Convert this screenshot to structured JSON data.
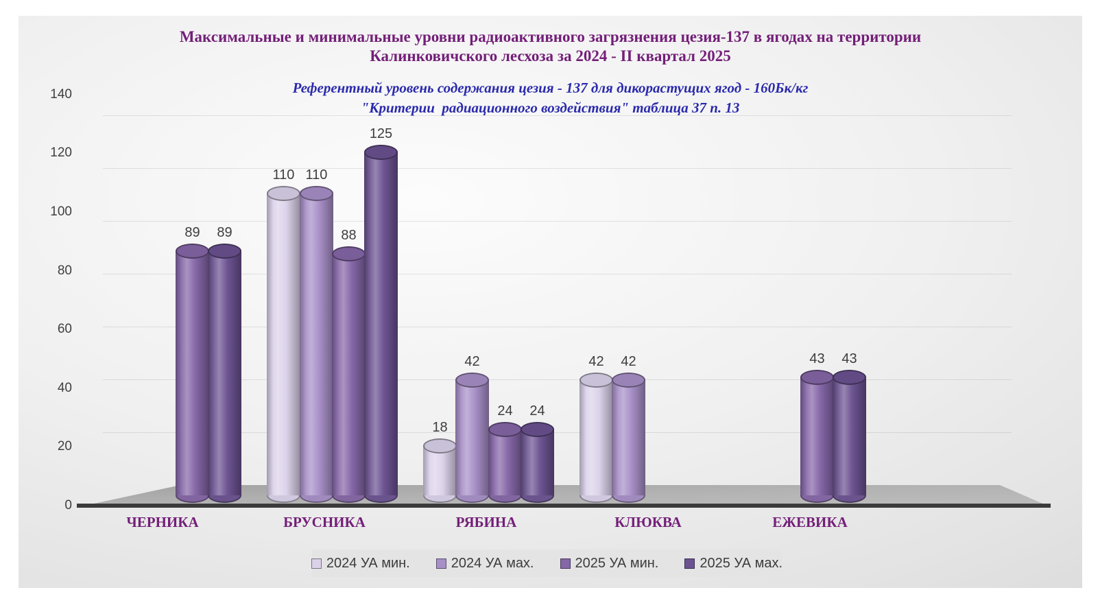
{
  "title": {
    "line1": "Максимальные и минимальные уровни радиоактивного загрязнения цезия-137 в ягодах на территории",
    "line2": "Калинковичского лесхоза за 2024 - II квартал 2025",
    "color": "#731f78"
  },
  "subtitle": {
    "line1": "Референтный уровень содержания цезия - 137 для дикорастущих ягод - 160Бк/кг",
    "line2": "\"Критерии  радиационного воздействия\" таблица 37 п. 13",
    "color": "#2a2aad"
  },
  "chart_data": {
    "type": "bar",
    "style": "3d-cylinder",
    "categories": [
      "ЧЕРНИКА",
      "БРУСНИКА",
      "РЯБИНА",
      "КЛЮКВА",
      "ЕЖЕВИКА"
    ],
    "series": [
      {
        "name": "2024 УА мин.",
        "color": "#dbd2ea",
        "values": [
          null,
          110,
          18,
          42,
          null
        ]
      },
      {
        "name": "2024 УА мах.",
        "color": "#a78fc7",
        "values": [
          null,
          110,
          42,
          42,
          null
        ]
      },
      {
        "name": "2025 УА мин.",
        "color": "#8566a7",
        "values": [
          89,
          88,
          24,
          null,
          43
        ]
      },
      {
        "name": "2025 УА мах.",
        "color": "#6b5291",
        "values": [
          89,
          125,
          24,
          null,
          43
        ]
      }
    ],
    "ylim": [
      0,
      140
    ],
    "yticks": [
      0,
      20,
      40,
      60,
      80,
      100,
      120,
      140
    ],
    "grid": true,
    "value_labels": true,
    "legend_position": "bottom-center",
    "axis_line_color": "#3b3b3b",
    "tick_label_color": "#3f3f3f"
  }
}
